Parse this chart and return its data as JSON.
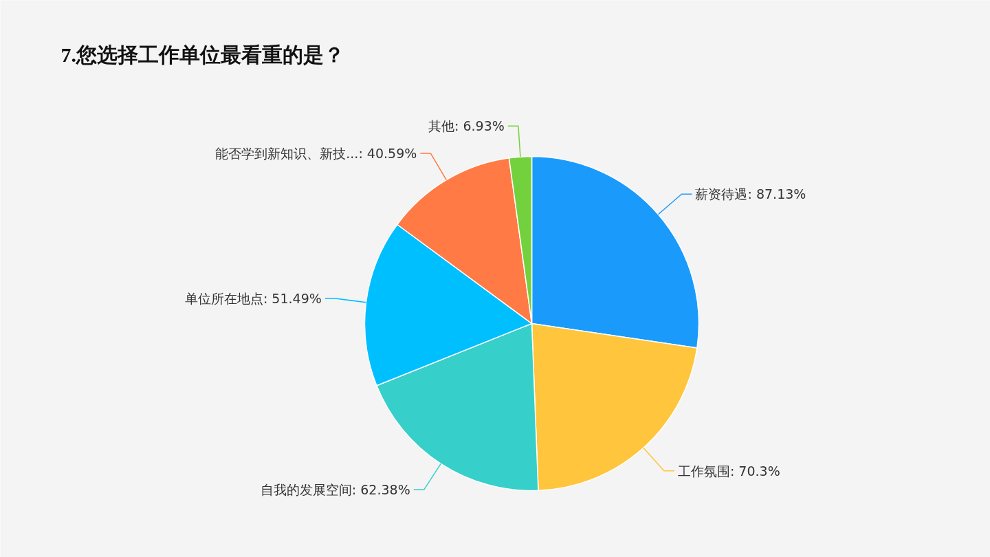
{
  "chart_data": {
    "type": "pie",
    "title": "7.您选择工作单位最看重的是？",
    "categories": [
      "薪资待遇",
      "工作氛围",
      "自我的发展空间",
      "单位所在地点",
      "能否学到新知识、新技...",
      "其他"
    ],
    "values": [
      87.13,
      70.3,
      62.38,
      51.49,
      40.59,
      6.93
    ],
    "value_labels": [
      "87.13%",
      "70.3%",
      "62.38%",
      "51.49%",
      "40.59%",
      "6.93%"
    ],
    "colors": [
      "#1a9bfc",
      "#ffc53d",
      "#36cfc9",
      "#00bfff",
      "#ff7a45",
      "#73d13d"
    ]
  }
}
